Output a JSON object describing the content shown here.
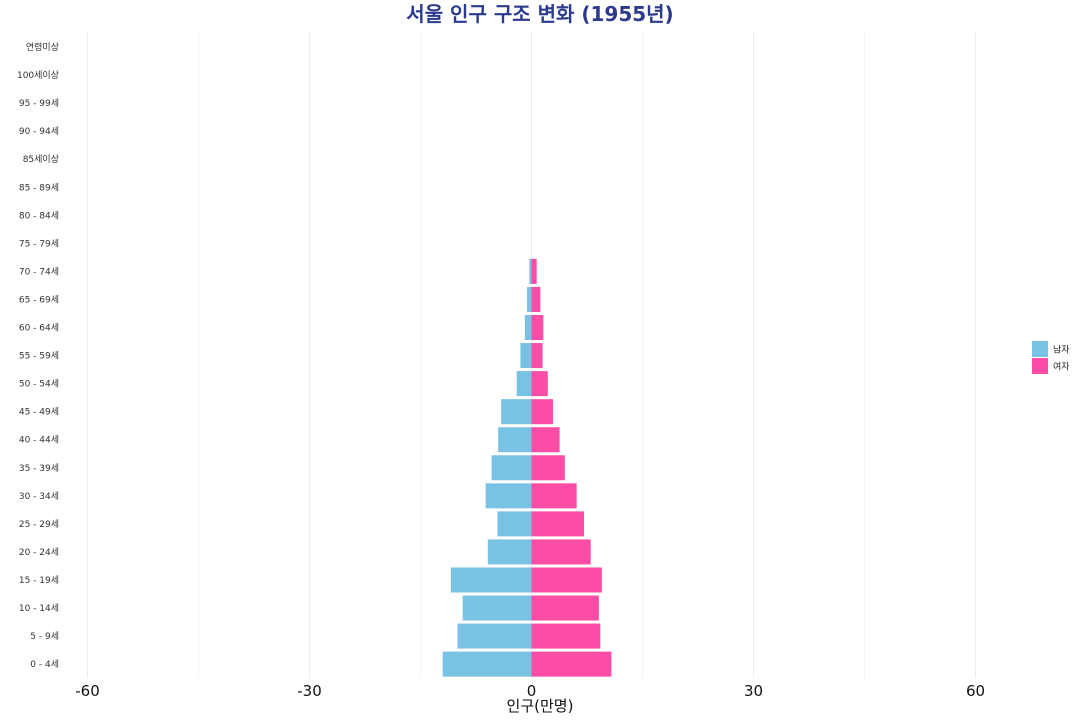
{
  "chart_data": {
    "type": "bar",
    "orientation": "horizontal",
    "title": "서울 인구 구조 변화 (1955년)",
    "xlabel": "인구(만명)",
    "ylabel": "",
    "xlim": [
      -70,
      70
    ],
    "xticks": [
      "-60",
      "-30",
      "0",
      "30",
      "60"
    ],
    "xtick_values": [
      -60,
      -30,
      0,
      30,
      60
    ],
    "grid": true,
    "legend_position": "right",
    "categories": [
      "0 - 4세",
      "5 - 9세",
      "10 - 14세",
      "15 - 19세",
      "20 - 24세",
      "25 - 29세",
      "30 - 34세",
      "35 - 39세",
      "40 - 44세",
      "45 - 49세",
      "50 - 54세",
      "55 - 59세",
      "60 - 64세",
      "65 - 69세",
      "70 - 74세",
      "75 - 79세",
      "80 - 84세",
      "85 - 89세",
      "85세이상",
      "90 - 94세",
      "95 - 99세",
      "100세이상",
      "연령미상"
    ],
    "series": [
      {
        "name": "남자",
        "color": "#78c2e3",
        "values": [
          -12.0,
          -10.0,
          -9.3,
          -10.9,
          -5.9,
          -4.6,
          -6.2,
          -5.4,
          -4.5,
          -4.1,
          -2.0,
          -1.5,
          -0.9,
          -0.6,
          -0.3,
          0,
          0,
          0,
          0,
          0,
          0,
          0,
          0
        ]
      },
      {
        "name": "여자",
        "color": "#fb4ca6",
        "values": [
          10.8,
          9.3,
          9.1,
          9.5,
          8.0,
          7.1,
          6.1,
          4.5,
          3.8,
          2.9,
          2.2,
          1.5,
          1.6,
          1.2,
          0.7,
          0,
          0,
          0,
          0,
          0,
          0,
          0,
          0
        ]
      }
    ]
  }
}
